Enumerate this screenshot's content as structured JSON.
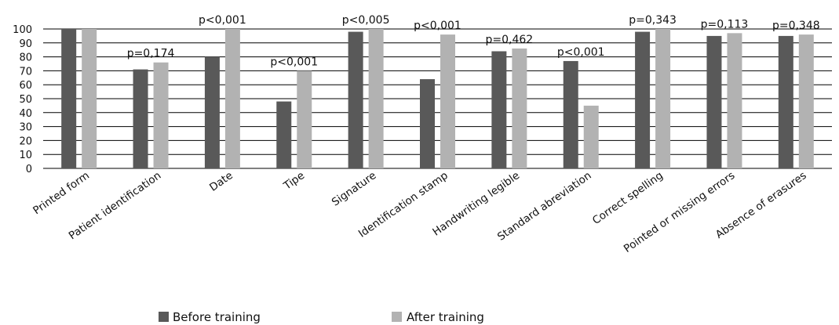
{
  "chart_data": {
    "type": "bar",
    "categories": [
      "Printed form",
      "Patient identification",
      "Date",
      "Tipe",
      "Signature",
      "Identification stamp",
      "Handwriting legible",
      "Standard abreviation",
      "Correct spelling",
      "Pointed or missing errors",
      "Absence of erasures"
    ],
    "series": [
      {
        "name": "Before training",
        "values": [
          100,
          71,
          80,
          48,
          98,
          64,
          84,
          77,
          98,
          95,
          95
        ],
        "color": "#595959"
      },
      {
        "name": "After training",
        "values": [
          100,
          76,
          100,
          70,
          100,
          96,
          86,
          45,
          100,
          97,
          96
        ],
        "color": "#b2b2b2"
      }
    ],
    "annotations": [
      "",
      "p=0,174",
      "p<0,001",
      "p<0,001",
      "p<0,005",
      "p<0,001",
      "p=0,462",
      "p<0,001",
      "p=0,343",
      "p=0,113",
      "p=0,348"
    ],
    "ylim": [
      0,
      100
    ],
    "yticks": [
      0,
      10,
      20,
      30,
      40,
      50,
      60,
      70,
      80,
      90,
      100
    ],
    "grid": true,
    "legend_position": "bottom",
    "title": "",
    "xlabel": "",
    "ylabel": ""
  }
}
